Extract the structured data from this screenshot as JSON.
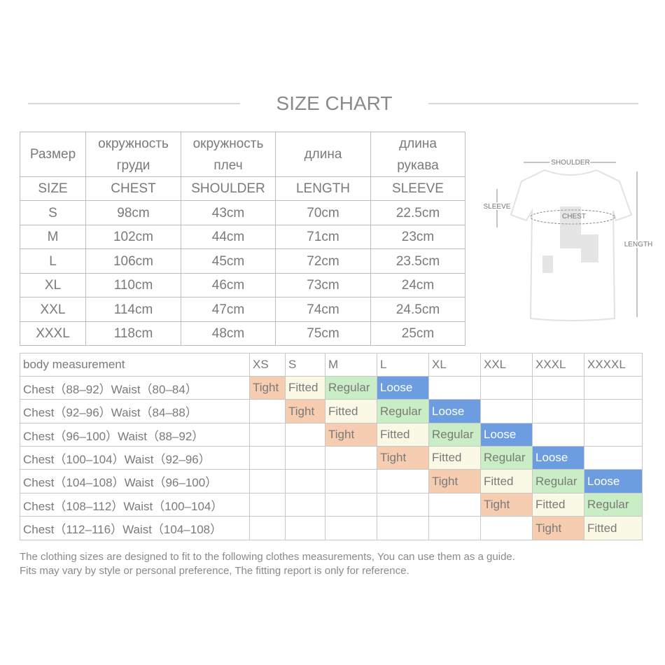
{
  "title": "SIZE CHART",
  "size_table": {
    "header_ru": [
      "Размер",
      "окружность груди",
      "окружность плеч",
      "длина",
      "длина рукава"
    ],
    "header_en": [
      "SIZE",
      "CHEST",
      "SHOULDER",
      "LENGTH",
      "SLEEVE"
    ],
    "rows": [
      [
        "S",
        "98cm",
        "43cm",
        "70cm",
        "22.5cm"
      ],
      [
        "M",
        "102cm",
        "44cm",
        "71cm",
        "23cm"
      ],
      [
        "L",
        "106cm",
        "45cm",
        "72cm",
        "23.5cm"
      ],
      [
        "XL",
        "110cm",
        "46cm",
        "73cm",
        "24cm"
      ],
      [
        "XXL",
        "114cm",
        "47cm",
        "74cm",
        "24.5cm"
      ],
      [
        "XXXL",
        "118cm",
        "48cm",
        "75cm",
        "25cm"
      ]
    ]
  },
  "diagram": {
    "shoulder": "SHOULDER",
    "sleeve": "SLEEVE",
    "chest": "CHEST",
    "length": "LENGTH"
  },
  "fit_table": {
    "header": [
      "body measurement",
      "XS",
      "S",
      "M",
      "L",
      "XL",
      "XXL",
      "XXXL",
      "XXXXL"
    ],
    "fit_colors": {
      "Tight": "#f6cdb1",
      "Fitted": "#f9f9e6",
      "Regular": "#c9eec5",
      "Loose": "#6b9de0"
    },
    "rows": [
      {
        "label": "Chest（88–92）Waist（80–84）",
        "cells": [
          "Tight",
          "Fitted",
          "Regular",
          "Loose",
          null,
          null,
          null,
          null
        ]
      },
      {
        "label": "Chest（92–96）Waist（84–88）",
        "cells": [
          null,
          "Tight",
          "Fitted",
          "Regular",
          "Loose",
          null,
          null,
          null
        ]
      },
      {
        "label": "Chest（96–100）Waist（88–92）",
        "cells": [
          null,
          null,
          "Tight",
          "Fitted",
          "Regular",
          "Loose",
          null,
          null
        ]
      },
      {
        "label": "Chest（100–104）Waist（92–96）",
        "cells": [
          null,
          null,
          null,
          "Tight",
          "Fitted",
          "Regular",
          "Loose",
          null
        ]
      },
      {
        "label": "Chest（104–108）Waist（96–100）",
        "cells": [
          null,
          null,
          null,
          null,
          "Tight",
          "Fitted",
          "Regular",
          "Loose"
        ]
      },
      {
        "label": "Chest（108–112）Waist（100–104）",
        "cells": [
          null,
          null,
          null,
          null,
          null,
          "Tight",
          "Fitted",
          "Regular"
        ]
      },
      {
        "label": "Chest（112–116）Waist（104–108）",
        "cells": [
          null,
          null,
          null,
          null,
          null,
          null,
          "Tight",
          "Fitted"
        ]
      }
    ]
  },
  "notes": [
    "The clothing sizes are designed to fit to the following clothes measurements, You can use them as a guide.",
    "Fits may vary by style or personal preference, The fitting report is only for reference."
  ]
}
